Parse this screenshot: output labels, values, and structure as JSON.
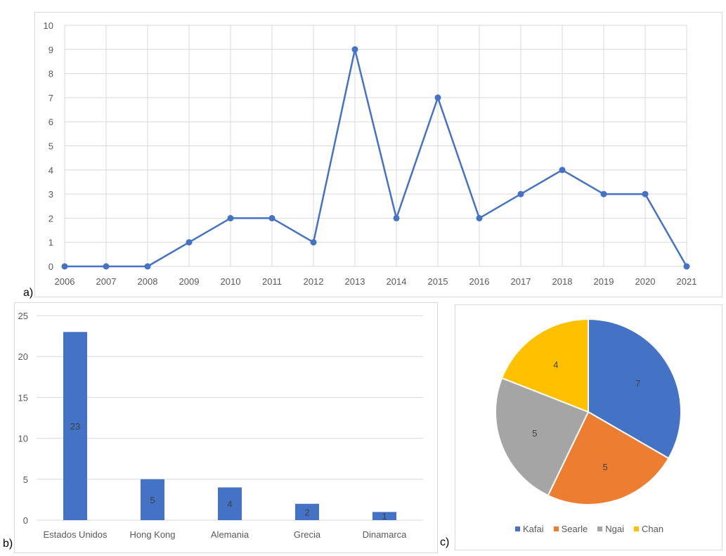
{
  "panels": {
    "a": {
      "label": "a)"
    },
    "b": {
      "label": "b)"
    },
    "c": {
      "label": "c)"
    }
  },
  "colors": {
    "line": "#4472C4",
    "bar": "#4472C4",
    "grid": "#d9d9d9",
    "axis_text": "#595959",
    "pie": [
      "#4472C4",
      "#ED7D31",
      "#A5A5A5",
      "#FFC000"
    ]
  },
  "chart_data": [
    {
      "id": "a",
      "type": "line",
      "title": "",
      "xlabel": "",
      "ylabel": "",
      "x": [
        "2006",
        "2007",
        "2008",
        "2009",
        "2010",
        "2011",
        "2012",
        "2013",
        "2014",
        "2015",
        "2016",
        "2017",
        "2018",
        "2019",
        "2020",
        "2021"
      ],
      "values": [
        0,
        0,
        0,
        1,
        2,
        2,
        1,
        9,
        2,
        7,
        2,
        3,
        4,
        3,
        3,
        0
      ],
      "ylim": [
        0,
        10
      ],
      "yticks": [
        0,
        1,
        2,
        3,
        4,
        5,
        6,
        7,
        8,
        9,
        10
      ],
      "grid": true,
      "markers": true
    },
    {
      "id": "b",
      "type": "bar",
      "title": "",
      "xlabel": "",
      "ylabel": "",
      "categories": [
        "Estados Unidos",
        "Hong Kong",
        "Alemania",
        "Grecia",
        "Dinamarca"
      ],
      "values": [
        23,
        5,
        4,
        2,
        1
      ],
      "data_labels": [
        "23",
        "5",
        "4",
        "2",
        "1"
      ],
      "ylim": [
        0,
        25
      ],
      "yticks": [
        0,
        5,
        10,
        15,
        20,
        25
      ],
      "grid": true
    },
    {
      "id": "c",
      "type": "pie",
      "title": "",
      "categories": [
        "Kafai",
        "Searle",
        "Ngai",
        "Chan"
      ],
      "values": [
        7,
        5,
        5,
        4
      ],
      "data_labels": [
        "7",
        "5",
        "5",
        "4"
      ],
      "legend_position": "bottom"
    }
  ]
}
